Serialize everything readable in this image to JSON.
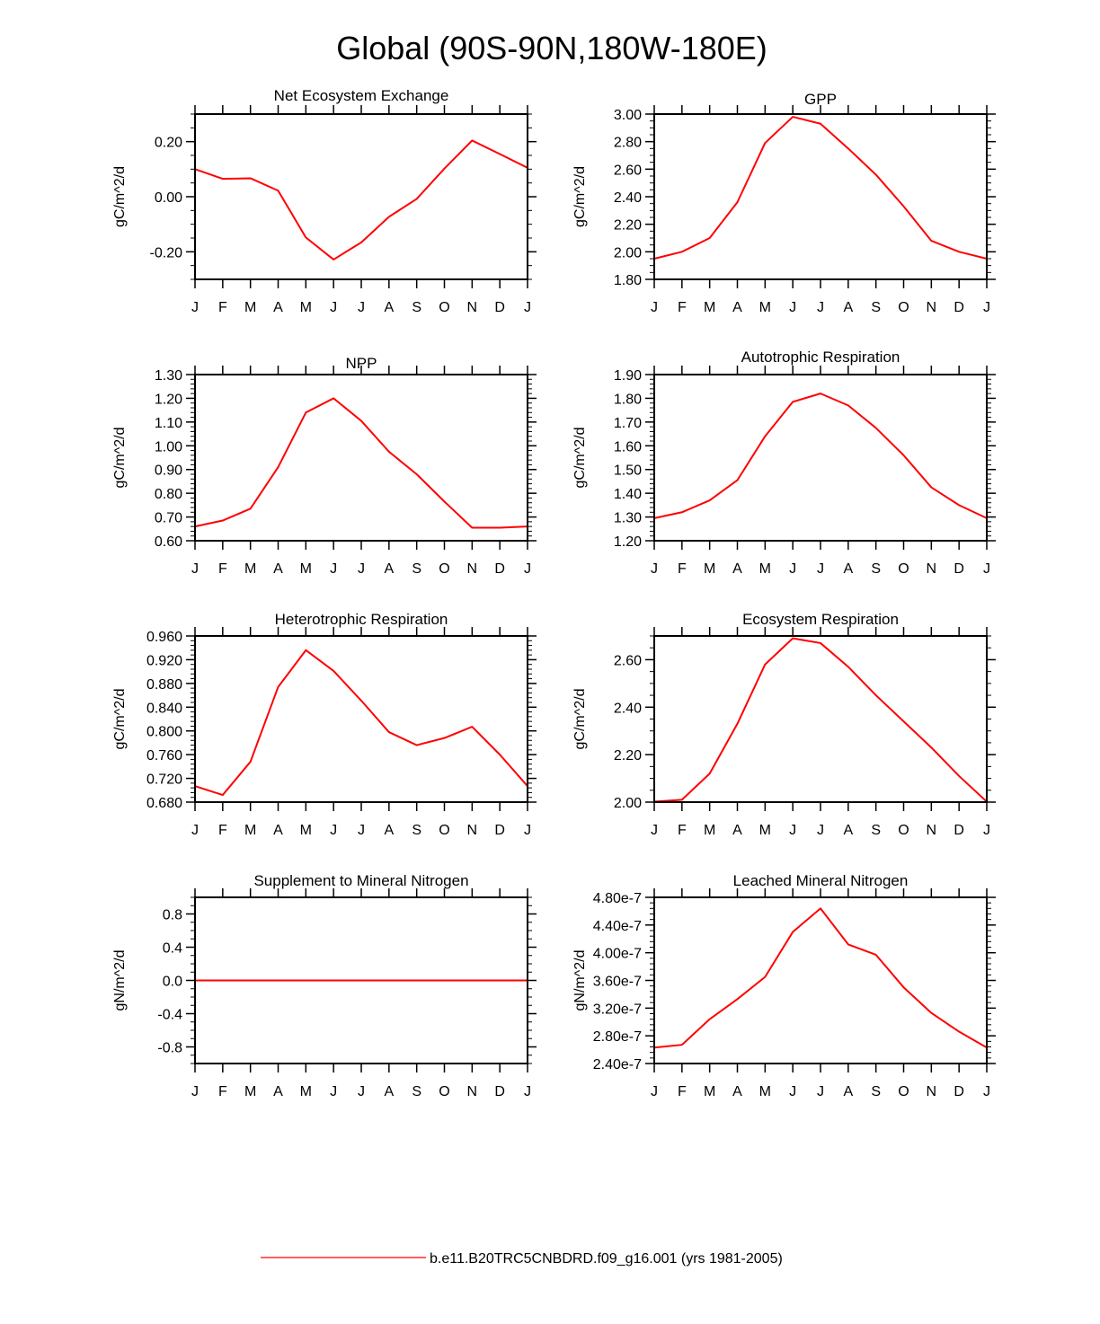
{
  "figure_title": "Global (90S-90N,180W-180E)",
  "legend": {
    "label": "b.e11.B20TRC5CNBDRD.f09_g16.001 (yrs 1981-2005)",
    "line_color": "#ff0000"
  },
  "series_color": "#ff0000",
  "chart_data": [
    {
      "type": "line",
      "title": "Net Ecosystem Exchange",
      "ylabel": "gC/m^2/d",
      "xlabel": "",
      "categories": [
        "J",
        "F",
        "M",
        "A",
        "M",
        "J",
        "J",
        "A",
        "S",
        "O",
        "N",
        "D",
        "J"
      ],
      "ylim": [
        -0.3,
        0.3
      ],
      "yticks": [
        -0.2,
        0.0,
        0.2
      ],
      "ytick_labels": [
        "-0.20",
        "0.00",
        "0.20"
      ],
      "y_minor_step": 0.05,
      "values": [
        0.1,
        0.065,
        0.067,
        0.022,
        -0.148,
        -0.228,
        -0.166,
        -0.073,
        -0.008,
        0.102,
        0.204,
        0.155,
        0.105
      ]
    },
    {
      "type": "line",
      "title": "GPP",
      "ylabel": "gC/m^2/d",
      "xlabel": "",
      "categories": [
        "J",
        "F",
        "M",
        "A",
        "M",
        "J",
        "J",
        "A",
        "S",
        "O",
        "N",
        "D",
        "J"
      ],
      "ylim": [
        1.8,
        3.0
      ],
      "yticks": [
        1.8,
        2.0,
        2.2,
        2.4,
        2.6,
        2.8,
        3.0
      ],
      "ytick_labels": [
        "1.80",
        "2.00",
        "2.20",
        "2.40",
        "2.60",
        "2.80",
        "3.00"
      ],
      "y_minor_step": 0.05,
      "values": [
        1.95,
        2.0,
        2.1,
        2.36,
        2.79,
        2.98,
        2.93,
        2.75,
        2.56,
        2.33,
        2.08,
        2.0,
        1.95
      ]
    },
    {
      "type": "line",
      "title": "NPP",
      "ylabel": "gC/m^2/d",
      "xlabel": "",
      "categories": [
        "J",
        "F",
        "M",
        "A",
        "M",
        "J",
        "J",
        "A",
        "S",
        "O",
        "N",
        "D",
        "J"
      ],
      "ylim": [
        0.6,
        1.3
      ],
      "yticks": [
        0.6,
        0.7,
        0.8,
        0.9,
        1.0,
        1.1,
        1.2,
        1.3
      ],
      "ytick_labels": [
        "0.60",
        "0.70",
        "0.80",
        "0.90",
        "1.00",
        "1.10",
        "1.20",
        "1.30"
      ],
      "y_minor_step": 0.02,
      "values": [
        0.66,
        0.685,
        0.735,
        0.91,
        1.14,
        1.2,
        1.105,
        0.975,
        0.88,
        0.765,
        0.655,
        0.655,
        0.66
      ]
    },
    {
      "type": "line",
      "title": "Autotrophic Respiration",
      "ylabel": "gC/m^2/d",
      "xlabel": "",
      "categories": [
        "J",
        "F",
        "M",
        "A",
        "M",
        "J",
        "J",
        "A",
        "S",
        "O",
        "N",
        "D",
        "J"
      ],
      "ylim": [
        1.2,
        1.9
      ],
      "yticks": [
        1.2,
        1.3,
        1.4,
        1.5,
        1.6,
        1.7,
        1.8,
        1.9
      ],
      "ytick_labels": [
        "1.20",
        "1.30",
        "1.40",
        "1.50",
        "1.60",
        "1.70",
        "1.80",
        "1.90"
      ],
      "y_minor_step": 0.02,
      "values": [
        1.295,
        1.32,
        1.37,
        1.455,
        1.64,
        1.785,
        1.82,
        1.77,
        1.675,
        1.56,
        1.425,
        1.35,
        1.295
      ]
    },
    {
      "type": "line",
      "title": "Heterotrophic Respiration",
      "ylabel": "gC/m^2/d",
      "xlabel": "",
      "categories": [
        "J",
        "F",
        "M",
        "A",
        "M",
        "J",
        "J",
        "A",
        "S",
        "O",
        "N",
        "D",
        "J"
      ],
      "ylim": [
        0.68,
        0.96
      ],
      "yticks": [
        0.68,
        0.72,
        0.76,
        0.8,
        0.84,
        0.88,
        0.92,
        0.96
      ],
      "ytick_labels": [
        "0.680",
        "0.720",
        "0.760",
        "0.800",
        "0.840",
        "0.880",
        "0.920",
        "0.960"
      ],
      "y_minor_step": 0.008,
      "values": [
        0.707,
        0.692,
        0.748,
        0.874,
        0.936,
        0.901,
        0.851,
        0.798,
        0.776,
        0.788,
        0.807,
        0.76,
        0.707
      ]
    },
    {
      "type": "line",
      "title": "Ecosystem Respiration",
      "ylabel": "gC/m^2/d",
      "xlabel": "",
      "categories": [
        "J",
        "F",
        "M",
        "A",
        "M",
        "J",
        "J",
        "A",
        "S",
        "O",
        "N",
        "D",
        "J"
      ],
      "ylim": [
        2.0,
        2.7
      ],
      "yticks": [
        2.0,
        2.2,
        2.4,
        2.6
      ],
      "ytick_labels": [
        "2.00",
        "2.20",
        "2.40",
        "2.60"
      ],
      "y_minor_step": 0.05,
      "values": [
        2.002,
        2.01,
        2.12,
        2.33,
        2.58,
        2.69,
        2.67,
        2.57,
        2.45,
        2.34,
        2.23,
        2.11,
        2.002
      ]
    },
    {
      "type": "line",
      "title": "Supplement to Mineral Nitrogen",
      "ylabel": "gN/m^2/d",
      "xlabel": "",
      "categories": [
        "J",
        "F",
        "M",
        "A",
        "M",
        "J",
        "J",
        "A",
        "S",
        "O",
        "N",
        "D",
        "J"
      ],
      "ylim": [
        -1.0,
        1.0
      ],
      "yticks": [
        -0.8,
        -0.4,
        0.0,
        0.4,
        0.8
      ],
      "ytick_labels": [
        "-0.8",
        "-0.4",
        "0.0",
        "0.4",
        "0.8"
      ],
      "y_minor_step": 0.1,
      "values": [
        0,
        0,
        0,
        0,
        0,
        0,
        0,
        0,
        0,
        0,
        0,
        0,
        0
      ]
    },
    {
      "type": "line",
      "title": "Leached Mineral Nitrogen",
      "ylabel": "gN/m^2/d",
      "xlabel": "",
      "categories": [
        "J",
        "F",
        "M",
        "A",
        "M",
        "J",
        "J",
        "A",
        "S",
        "O",
        "N",
        "D",
        "J"
      ],
      "ylim": [
        2.4e-07,
        4.8e-07
      ],
      "yticks": [
        2.4e-07,
        2.8e-07,
        3.2e-07,
        3.6e-07,
        4e-07,
        4.4e-07,
        4.8e-07
      ],
      "ytick_labels": [
        "2.40e-7",
        "2.80e-7",
        "3.20e-7",
        "3.60e-7",
        "4.00e-7",
        "4.40e-7",
        "4.80e-7"
      ],
      "y_minor_step": 8e-09,
      "values": [
        2.63e-07,
        2.67e-07,
        3.04e-07,
        3.33e-07,
        3.65e-07,
        4.3e-07,
        4.64e-07,
        4.12e-07,
        3.97e-07,
        3.5e-07,
        3.13e-07,
        2.86e-07,
        2.63e-07
      ]
    }
  ]
}
